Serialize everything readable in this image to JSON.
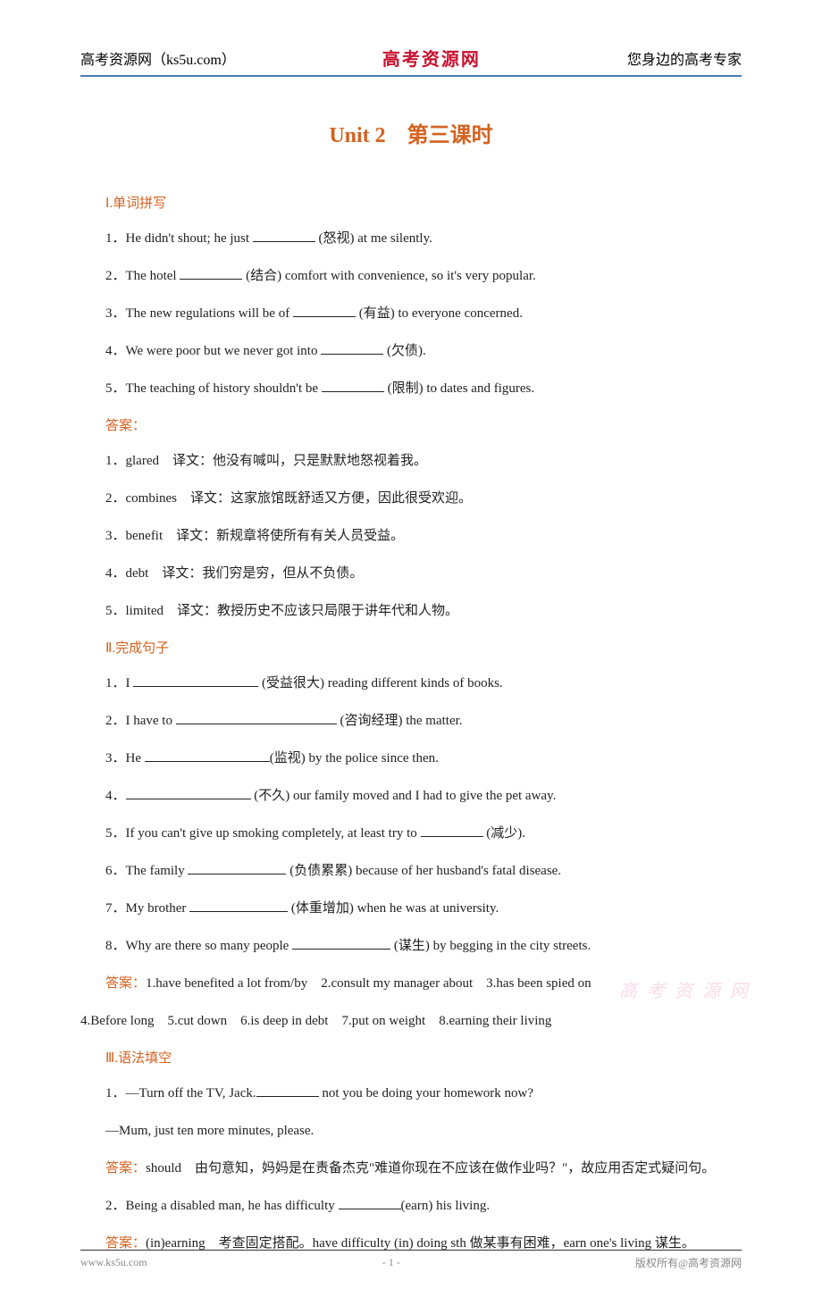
{
  "header": {
    "left": "高考资源网（ks5u.com）",
    "center": "高考资源网",
    "right": "您身边的高考专家"
  },
  "title": "Unit 2　第三课时",
  "section1": {
    "header": "Ⅰ.单词拼写",
    "items": [
      {
        "pre": "1．He didn't shout; he just ",
        "post": " (怒视) at me silently."
      },
      {
        "pre": "2．The hotel ",
        "post": " (结合) comfort with convenience, so it's very popular."
      },
      {
        "pre": "3．The new regulations will be of ",
        "post": " (有益) to everyone concerned."
      },
      {
        "pre": "4．We were poor but we never got into ",
        "post": " (欠债)."
      },
      {
        "pre": "5．The teaching of history shouldn't be ",
        "post": " (限制) to dates and figures."
      }
    ],
    "answerLabel": "答案：",
    "answers": [
      "1．glared　译文：他没有喊叫，只是默默地怒视着我。",
      "2．combines　译文：这家旅馆既舒适又方便，因此很受欢迎。",
      "3．benefit　译文：新规章将使所有有关人员受益。",
      "4．debt　译文：我们穷是穷，但从不负债。",
      "5．limited　译文：教授历史不应该只局限于讲年代和人物。"
    ]
  },
  "section2": {
    "header": "Ⅱ.完成句子",
    "items": [
      {
        "pre": "1．I ",
        "post": " (受益很大) reading different kinds of books.",
        "blankClass": "blank-wide"
      },
      {
        "pre": "2．I have to ",
        "post": " (咨询经理) the matter.",
        "blankClass": "blank-wider"
      },
      {
        "pre": "3．He ",
        "post": "(监视) by the police since then.",
        "blankClass": "blank-wide"
      },
      {
        "pre": "4．",
        "post": " (不久) our family moved and I had to give the pet away.",
        "blankClass": "blank-wide"
      },
      {
        "pre": "5．If you can't give up smoking completely, at least try to ",
        "post": " (减少).",
        "blankClass": "blank"
      },
      {
        "pre": "6．The family ",
        "post": " (负债累累) because of her husband's fatal disease.",
        "blankClass": "blank-med"
      },
      {
        "pre": "7．My brother ",
        "post": " (体重增加) when he was at university.",
        "blankClass": "blank-med"
      },
      {
        "pre": "8．Why are there so many people ",
        "post": " (谋生) by begging in the city streets.",
        "blankClass": "blank-med"
      }
    ],
    "answerLabel": "答案：",
    "answerLine1": "1.have benefited a lot from/by　2.consult my manager about　3.has been spied on",
    "answerLine2": "4.Before long　5.cut down　6.is deep in debt　7.put on weight　8.earning their living"
  },
  "section3": {
    "header": "Ⅲ.语法填空",
    "q1_line1_pre": "1．—Turn off the TV, Jack.",
    "q1_line1_post": " not you be doing your homework now?",
    "q1_line2": "—Mum, just ten more minutes, please.",
    "answerLabel": "答案：",
    "a1": "should　由句意知，妈妈是在责备杰克\"难道你现在不应该在做作业吗？\"，故应用否定式疑问句。",
    "q2_pre": "2．Being a disabled man, he has difficulty ",
    "q2_post": "(earn) his living.",
    "a2": "(in)earning　考查固定搭配。have difficulty (in) doing sth 做某事有困难，earn one's living 谋生。"
  },
  "watermark": "高 考 资 源 网",
  "footer": {
    "left": "www.ks5u.com",
    "center": "- 1 -",
    "right": "版权所有@高考资源网"
  }
}
